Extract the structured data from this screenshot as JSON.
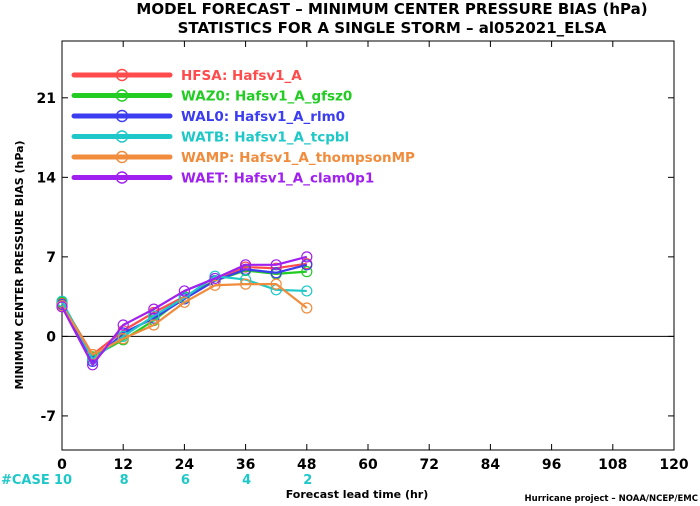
{
  "chart_data": {
    "type": "line",
    "title": "MODEL FORECAST – MINIMUM CENTER PRESSURE BIAS (hPa)",
    "subtitle": "STATISTICS FOR A SINGLE STORM – al052021_ELSA",
    "xlabel": "Forecast lead time (hr)",
    "ylabel": "MINIMUM CENTER PRESSURE BIAS (hPa)",
    "credit": "Hurricane project – NOAA/NCEP/EMC",
    "xlim": [
      0,
      120
    ],
    "ylim": [
      -10,
      26
    ],
    "xticks": [
      0,
      12,
      24,
      36,
      48,
      60,
      72,
      84,
      96,
      108,
      120
    ],
    "yticks": [
      -7,
      0,
      7,
      14,
      21
    ],
    "legend_position": "top-left",
    "x": [
      0,
      6,
      12,
      18,
      24,
      30,
      36,
      42,
      48
    ],
    "series": [
      {
        "name": "HFSA:  Hafsv1_A",
        "color": "#ff4b4b",
        "values": [
          2.9,
          -1.6,
          0.5,
          2.1,
          3.5,
          4.9,
          6.1,
          6.0,
          6.4
        ]
      },
      {
        "name": "WAZ0:  Hafsv1_A_gfsz0",
        "color": "#22cc22",
        "values": [
          3.0,
          -1.8,
          -0.3,
          1.4,
          3.5,
          4.9,
          5.8,
          5.5,
          5.7
        ]
      },
      {
        "name": "WAL0:  Hafsv1_A_rlm0",
        "color": "#3c3cf0",
        "values": [
          2.8,
          -2.2,
          0.3,
          1.6,
          3.3,
          4.9,
          5.9,
          5.6,
          6.3
        ]
      },
      {
        "name": "WATB:  Hafsv1_A_tcpbl",
        "color": "#1ec8c8",
        "values": [
          3.1,
          -2.0,
          0.0,
          1.8,
          3.4,
          5.3,
          5.0,
          4.1,
          4.0
        ]
      },
      {
        "name": "WAMP:  Hafsv1_A_thompsonMP",
        "color": "#f08c3c",
        "values": [
          2.7,
          -1.6,
          -0.2,
          1.0,
          3.0,
          4.5,
          4.6,
          4.6,
          2.5
        ]
      },
      {
        "name": "WAET:  Hafsv1_A_clam0p1",
        "color": "#a020f0",
        "values": [
          2.6,
          -2.5,
          1.0,
          2.4,
          4.0,
          5.1,
          6.3,
          6.3,
          7.0
        ]
      }
    ],
    "cases": {
      "label": "#CASE",
      "color": "#1ec8c8",
      "entries": [
        {
          "x": 0,
          "n": "10"
        },
        {
          "x": 12,
          "n": "8"
        },
        {
          "x": 24,
          "n": "6"
        },
        {
          "x": 36,
          "n": "4"
        },
        {
          "x": 48,
          "n": "2"
        }
      ]
    }
  }
}
